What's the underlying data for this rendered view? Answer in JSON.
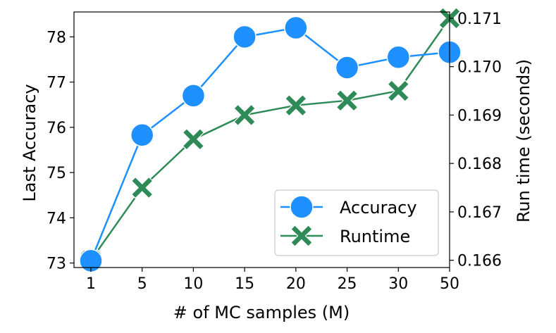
{
  "chart_data": {
    "type": "line",
    "categories": [
      "1",
      "5",
      "10",
      "15",
      "20",
      "25",
      "30",
      "50"
    ],
    "xlabel": "# of MC samples (M)",
    "ylabel_left": "Last Accuracy",
    "ylabel_right": "Run time (seconds)",
    "ylim_left": [
      72.9,
      78.55
    ],
    "ylim_right": [
      0.16585,
      0.17113
    ],
    "yticks_left": [
      "73",
      "74",
      "75",
      "76",
      "77",
      "78"
    ],
    "yticks_right": [
      "0.166",
      "0.167",
      "0.168",
      "0.169",
      "0.170",
      "0.171"
    ],
    "grid": false,
    "legend_position": "lower-right",
    "series": [
      {
        "name": "Accuracy",
        "axis": "left",
        "marker": "circle",
        "color": "#1E90FF",
        "values": [
          73.05,
          75.83,
          76.7,
          78.0,
          78.2,
          77.32,
          77.55,
          77.66
        ]
      },
      {
        "name": "Runtime",
        "axis": "right",
        "marker": "x",
        "color": "#2E8B57",
        "values": [
          0.166,
          0.1675,
          0.1685,
          0.169,
          0.1692,
          0.1693,
          0.1695,
          0.171
        ]
      }
    ]
  }
}
